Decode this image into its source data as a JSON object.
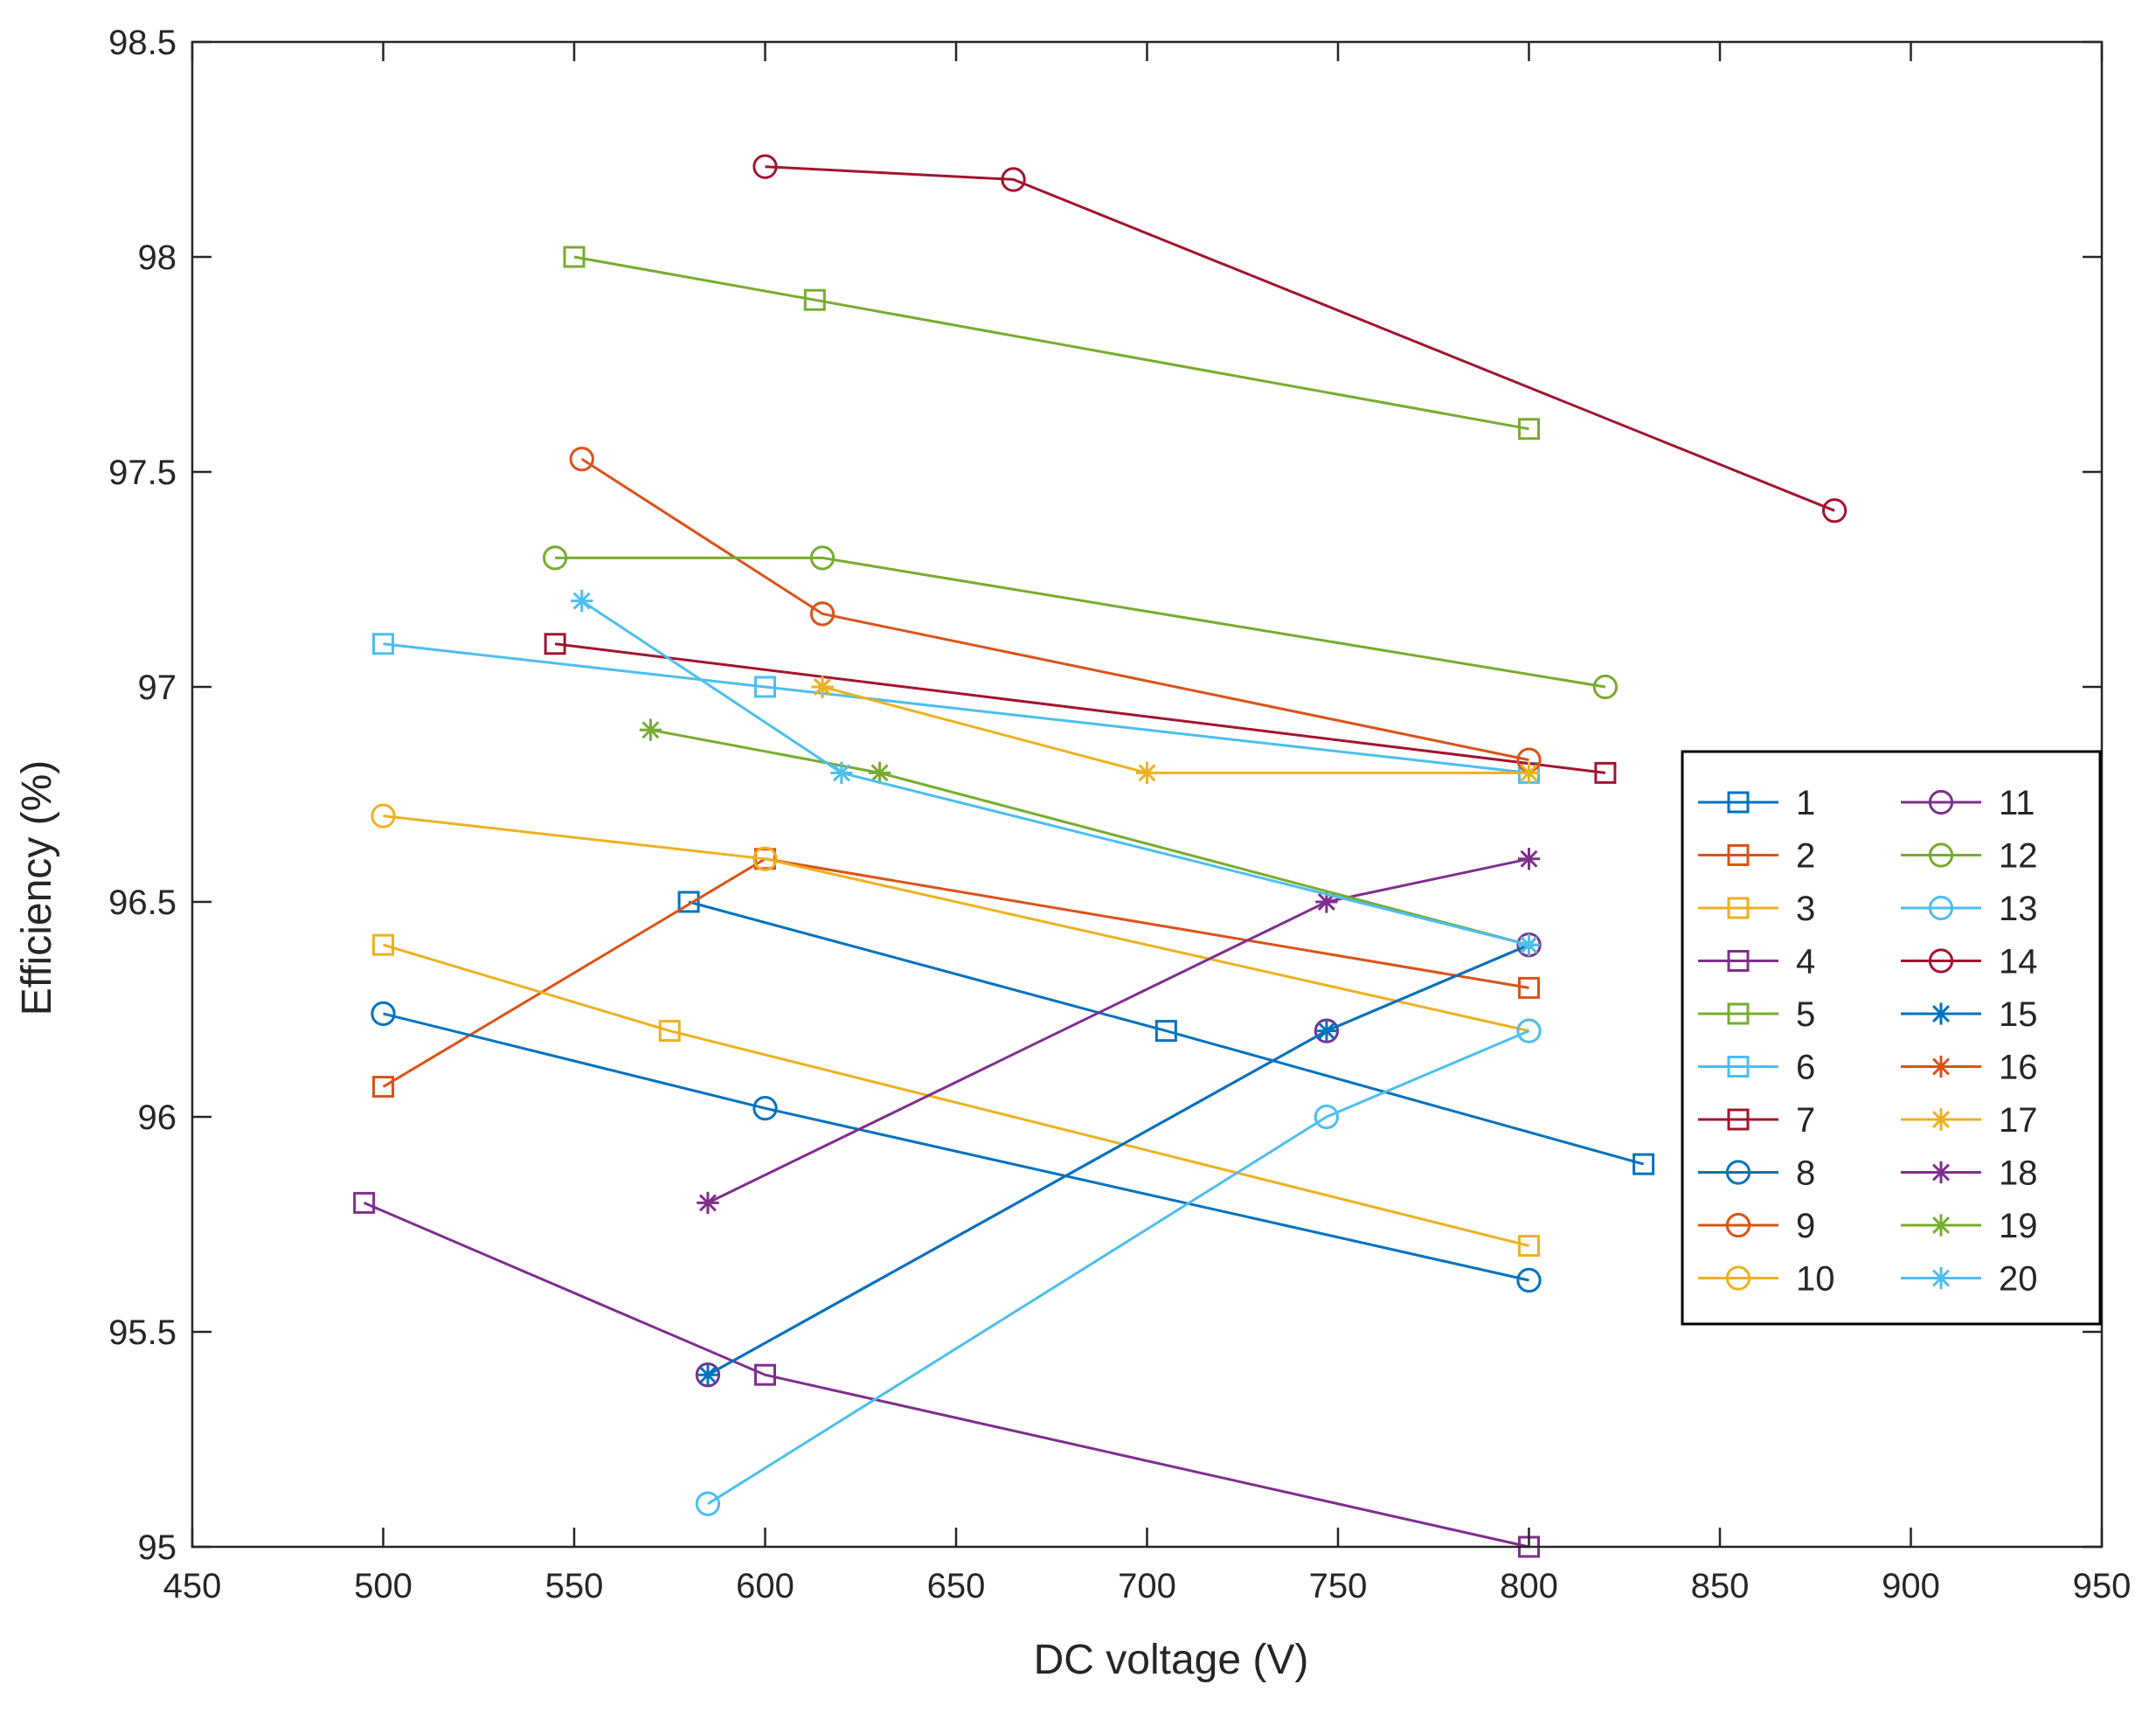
{
  "chart_data": {
    "type": "line",
    "title": "",
    "xlabel": "DC voltage (V)",
    "ylabel": "Efficiency (%)",
    "xlim": [
      450,
      950
    ],
    "ylim": [
      95,
      98.5
    ],
    "xticks": [
      450,
      500,
      550,
      600,
      650,
      700,
      750,
      800,
      850,
      900,
      950
    ],
    "yticks": [
      95,
      95.5,
      96,
      96.5,
      97,
      97.5,
      98,
      98.5
    ],
    "xtick_labels": [
      "450",
      "500",
      "550",
      "600",
      "650",
      "700",
      "750",
      "800",
      "850",
      "900",
      "950"
    ],
    "ytick_labels": [
      "95",
      "95.5",
      "96",
      "96.5",
      "97",
      "97.5",
      "98",
      "98.5"
    ],
    "grid": false,
    "legend_position": "right, inside axes, two columns",
    "series": [
      {
        "name": "1",
        "color": "#0072BD",
        "marker": "square",
        "x": [
          580,
          705,
          830
        ],
        "y": [
          96.5,
          96.2,
          95.89
        ]
      },
      {
        "name": "2",
        "color": "#D95319",
        "marker": "square",
        "x": [
          500,
          600,
          800
        ],
        "y": [
          96.07,
          96.6,
          96.3
        ]
      },
      {
        "name": "3",
        "color": "#EDB120",
        "marker": "square",
        "x": [
          500,
          575,
          800
        ],
        "y": [
          96.4,
          96.2,
          95.7
        ]
      },
      {
        "name": "4",
        "color": "#7E2F8E",
        "marker": "square",
        "x": [
          495,
          600,
          800
        ],
        "y": [
          95.8,
          95.4,
          95.0
        ]
      },
      {
        "name": "5",
        "color": "#77AC30",
        "marker": "square",
        "x": [
          550,
          613,
          800
        ],
        "y": [
          98.0,
          97.9,
          97.6
        ]
      },
      {
        "name": "6",
        "color": "#4DBEEE",
        "marker": "square",
        "x": [
          500,
          600,
          800
        ],
        "y": [
          97.1,
          97.0,
          96.8
        ]
      },
      {
        "name": "7",
        "color": "#A2142F",
        "marker": "square",
        "x": [
          545,
          820
        ],
        "y": [
          97.1,
          96.8
        ]
      },
      {
        "name": "8",
        "color": "#0072BD",
        "marker": "circle",
        "x": [
          500,
          600,
          800
        ],
        "y": [
          96.24,
          96.02,
          95.62
        ]
      },
      {
        "name": "9",
        "color": "#D95319",
        "marker": "circle",
        "x": [
          552,
          615,
          800
        ],
        "y": [
          97.53,
          97.17,
          96.83
        ]
      },
      {
        "name": "10",
        "color": "#EDB120",
        "marker": "circle",
        "x": [
          500,
          600,
          800
        ],
        "y": [
          96.7,
          96.6,
          96.2
        ]
      },
      {
        "name": "11",
        "color": "#7E2F8E",
        "marker": "circle",
        "x": [
          585,
          747,
          800
        ],
        "y": [
          95.4,
          96.2,
          96.4
        ]
      },
      {
        "name": "12",
        "color": "#77AC30",
        "marker": "circle",
        "x": [
          545,
          615,
          820
        ],
        "y": [
          97.3,
          97.3,
          97.0
        ]
      },
      {
        "name": "13",
        "color": "#4DBEEE",
        "marker": "circle",
        "x": [
          585,
          747,
          800
        ],
        "y": [
          95.1,
          96.0,
          96.2
        ]
      },
      {
        "name": "14",
        "color": "#A2142F",
        "marker": "circle",
        "x": [
          600,
          665,
          880
        ],
        "y": [
          98.21,
          98.18,
          97.41
        ]
      },
      {
        "name": "15",
        "color": "#0072BD",
        "marker": "asterisk",
        "x": [
          585,
          747,
          800
        ],
        "y": [
          95.4,
          96.2,
          96.4
        ]
      },
      {
        "name": "16",
        "color": "#D95319",
        "marker": "asterisk",
        "x": [
          615
        ],
        "y": [
          97.0
        ]
      },
      {
        "name": "17",
        "color": "#EDB120",
        "marker": "asterisk",
        "x": [
          615,
          700,
          800
        ],
        "y": [
          97.0,
          96.8,
          96.8
        ]
      },
      {
        "name": "18",
        "color": "#7E2F8E",
        "marker": "asterisk",
        "x": [
          585,
          747,
          800
        ],
        "y": [
          95.8,
          96.5,
          96.6
        ]
      },
      {
        "name": "19",
        "color": "#77AC30",
        "marker": "asterisk",
        "x": [
          570,
          630,
          800
        ],
        "y": [
          96.9,
          96.8,
          96.4
        ]
      },
      {
        "name": "20",
        "color": "#4DBEEE",
        "marker": "asterisk",
        "x": [
          552,
          620,
          800
        ],
        "y": [
          97.2,
          96.8,
          96.4
        ]
      }
    ]
  }
}
